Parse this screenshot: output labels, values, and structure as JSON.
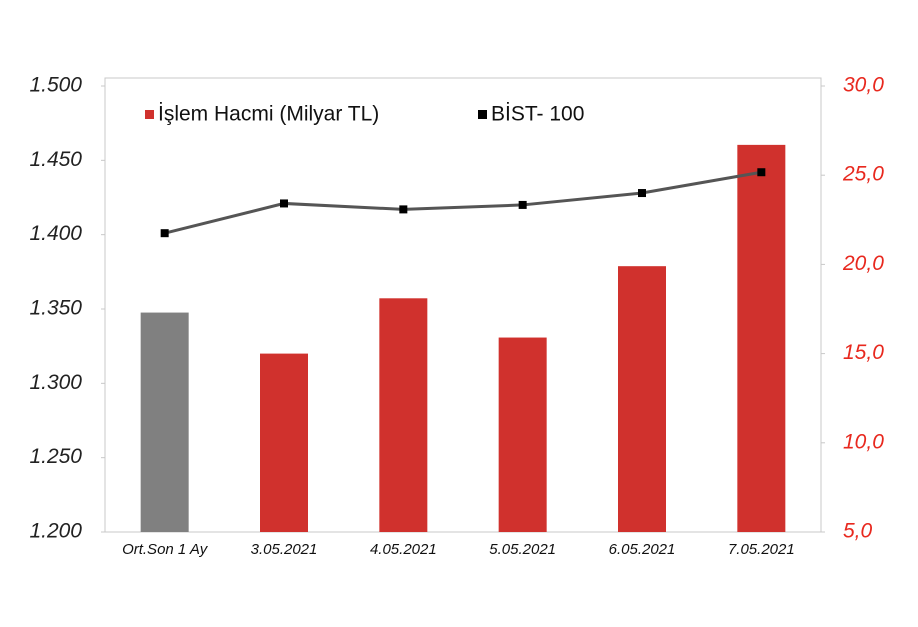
{
  "chart_data": {
    "type": "combo",
    "categories": [
      "Ort.Son 1 Ay",
      "3.05.2021",
      "4.05.2021",
      "5.05.2021",
      "6.05.2021",
      "7.05.2021"
    ],
    "series": [
      {
        "name": "İşlem Hacmi (Milyar TL)",
        "type": "bar",
        "axis": "y2",
        "color": "#d0312d",
        "colors": [
          "#808080",
          "#d0312d",
          "#d0312d",
          "#d0312d",
          "#d0312d",
          "#d0312d"
        ],
        "values": [
          17.3,
          15.0,
          18.1,
          15.9,
          19.9,
          26.7
        ]
      },
      {
        "name": "BİST- 100",
        "type": "line",
        "axis": "y",
        "color": "#000000",
        "line_color": "#555555",
        "values": [
          1401,
          1421,
          1417,
          1420,
          1428,
          1442
        ]
      }
    ],
    "ylim": [
      1200,
      1500
    ],
    "yticks": [
      {
        "value": 1200,
        "label": "1.200"
      },
      {
        "value": 1250,
        "label": "1.250"
      },
      {
        "value": 1300,
        "label": "1.300"
      },
      {
        "value": 1350,
        "label": "1.350"
      },
      {
        "value": 1400,
        "label": "1.400"
      },
      {
        "value": 1450,
        "label": "1.450"
      },
      {
        "value": 1500,
        "label": "1.500"
      }
    ],
    "y2lim": [
      5,
      30
    ],
    "y2ticks": [
      {
        "value": 5,
        "label": "5,0"
      },
      {
        "value": 10,
        "label": "10,0"
      },
      {
        "value": 15,
        "label": "15,0"
      },
      {
        "value": 20,
        "label": "20,0"
      },
      {
        "value": 25,
        "label": "25,0"
      },
      {
        "value": 30,
        "label": "30,0"
      }
    ],
    "y2_color": "#e8281e",
    "grid": false,
    "legend": "top-left"
  }
}
